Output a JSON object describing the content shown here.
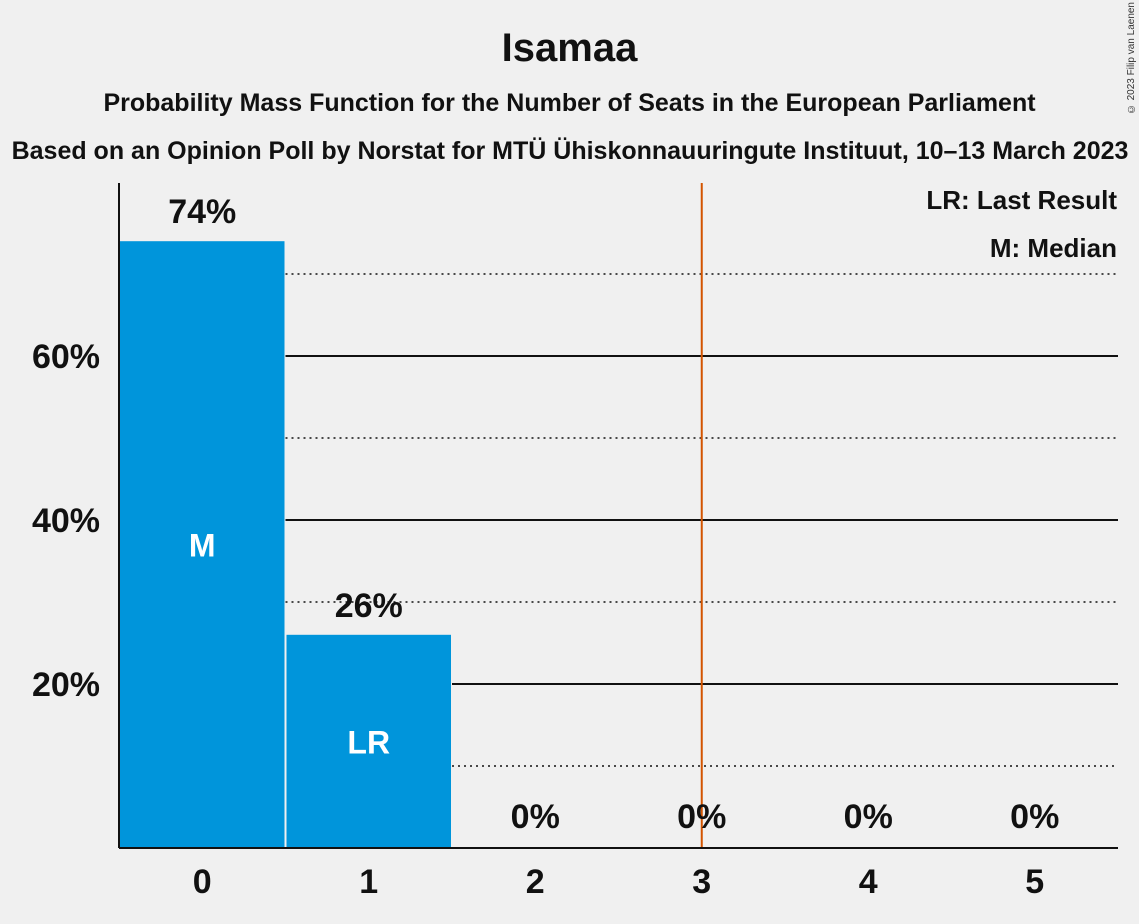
{
  "header": {
    "title": "Isamaa",
    "subtitle": "Probability Mass Function for the Number of Seats in the European Parliament",
    "subtitle2": "Based on an Opinion Poll by Norstat for MTÜ Ühiskonnauuringute Instituut, 10–13 March 2023",
    "copyright": "© 2023 Filip van Laenen"
  },
  "colors": {
    "bar": "#0095db",
    "threshold_line": "#d35400",
    "background": "#f0f0f0"
  },
  "chart_data": {
    "type": "bar",
    "categories": [
      "0",
      "1",
      "2",
      "3",
      "4",
      "5"
    ],
    "values": [
      74,
      26,
      0,
      0,
      0,
      0
    ],
    "value_labels": [
      "74%",
      "26%",
      "0%",
      "0%",
      "0%",
      "0%"
    ],
    "bar_markers": [
      "M",
      "LR",
      "",
      "",
      "",
      ""
    ],
    "y_ticks": [
      20,
      40,
      60
    ],
    "y_tick_labels": [
      "20%",
      "40%",
      "60%"
    ],
    "ylim": [
      0,
      80
    ],
    "minor_gridlines": [
      10,
      30,
      50,
      70
    ],
    "majority_line_after_category": 3.5,
    "legend": {
      "placement": "top-right",
      "entries": [
        "LR: Last Result",
        "M: Median"
      ]
    }
  }
}
